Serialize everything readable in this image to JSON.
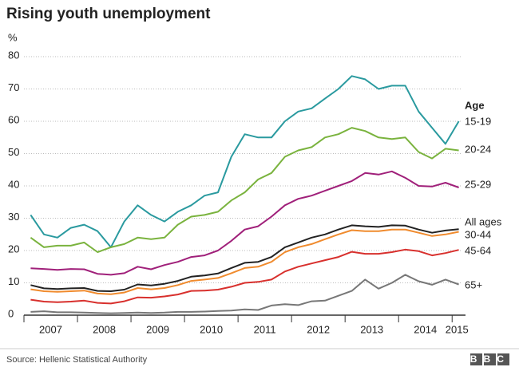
{
  "chart_data": {
    "type": "line",
    "title": "Rising youth unemployment",
    "y_label": "%",
    "legend_title": "Age",
    "source": "Source: Hellenic Statistical Authority",
    "logo": "BBC",
    "x": [
      2007.125,
      2007.375,
      2007.625,
      2007.875,
      2008.125,
      2008.375,
      2008.625,
      2008.875,
      2009.125,
      2009.375,
      2009.625,
      2009.875,
      2010.125,
      2010.375,
      2010.625,
      2010.875,
      2011.125,
      2011.375,
      2011.625,
      2011.875,
      2012.125,
      2012.375,
      2012.625,
      2012.875,
      2013.125,
      2013.375,
      2013.625,
      2013.875,
      2014.125,
      2014.375,
      2014.625,
      2014.875,
      2015.125
    ],
    "xlim": [
      2007,
      2015.25
    ],
    "xticks": [
      2007,
      2008,
      2009,
      2010,
      2011,
      2012,
      2013,
      2014,
      2015
    ],
    "ylim": [
      0,
      80
    ],
    "yticks": [
      0,
      10,
      20,
      30,
      40,
      50,
      60,
      70,
      80
    ],
    "grid": true,
    "series": [
      {
        "name": "15-19",
        "color": "#2a9a9f",
        "values": [
          31,
          25,
          24,
          27,
          28,
          26,
          21,
          29,
          34,
          31,
          29,
          32,
          34,
          37,
          38,
          49,
          56,
          55,
          55,
          60,
          63,
          64,
          67,
          70,
          74,
          73,
          70,
          71,
          71,
          63,
          58,
          53,
          60
        ]
      },
      {
        "name": "20-24",
        "color": "#7ab33e",
        "values": [
          24,
          21,
          21.5,
          21.5,
          22.5,
          19.5,
          21,
          22,
          24,
          23.5,
          24,
          28,
          30.5,
          31,
          32,
          35.5,
          38,
          42,
          44,
          49,
          51,
          52,
          55,
          56,
          58,
          57,
          55,
          54.5,
          55,
          50.5,
          48.5,
          51.5,
          51
        ]
      },
      {
        "name": "25-29",
        "color": "#a0207a",
        "values": [
          14.5,
          14.3,
          14,
          14.3,
          14.2,
          12.8,
          12.5,
          13,
          15,
          14.2,
          15.5,
          16.5,
          18,
          18.5,
          20,
          23,
          26.5,
          27.5,
          30.5,
          34,
          36,
          37,
          38.5,
          40,
          41.5,
          44,
          43.5,
          44.5,
          42.5,
          40,
          39.8,
          41,
          39.5
        ]
      },
      {
        "name": "All ages",
        "color": "#222222",
        "values": [
          9.3,
          8.3,
          8.1,
          8.3,
          8.4,
          7.5,
          7.4,
          7.9,
          9.5,
          9.2,
          9.7,
          10.6,
          11.9,
          12.3,
          12.9,
          14.6,
          16.2,
          16.5,
          18,
          21,
          22.5,
          24,
          25,
          26.5,
          27.8,
          27.5,
          27.3,
          27.8,
          27.7,
          26.5,
          25.5,
          26.2,
          26.6
        ]
      },
      {
        "name": "30-44",
        "color": "#f08b2e",
        "values": [
          8,
          7.4,
          7.2,
          7.4,
          7.6,
          6.7,
          6.5,
          7,
          8.4,
          8,
          8.4,
          9.3,
          10.6,
          11,
          11.5,
          13,
          14.6,
          15,
          16.5,
          19.5,
          21,
          22,
          23.5,
          25,
          26.3,
          26,
          26,
          26.5,
          26.5,
          25.5,
          24.5,
          25,
          25.8
        ]
      },
      {
        "name": "45-64",
        "color": "#d8302d",
        "values": [
          4.8,
          4.2,
          4,
          4.2,
          4.5,
          3.8,
          3.6,
          4.3,
          5.5,
          5.4,
          5.8,
          6.4,
          7.5,
          7.6,
          7.9,
          8.8,
          10,
          10.3,
          11,
          13.5,
          15,
          16,
          17,
          18,
          19.6,
          19,
          19,
          19.5,
          20.3,
          19.8,
          18.5,
          19.2,
          20.2
        ]
      },
      {
        "name": "65+",
        "color": "#777777",
        "values": [
          1,
          1.2,
          0.9,
          0.9,
          0.8,
          0.7,
          0.6,
          0.7,
          0.8,
          0.7,
          0.8,
          1,
          1,
          1.1,
          1.3,
          1.4,
          1.8,
          1.6,
          3,
          3.4,
          3.1,
          4.3,
          4.5,
          6,
          7.5,
          11,
          8.2,
          10,
          12.5,
          10.5,
          9.4,
          11,
          9.5
        ]
      }
    ]
  }
}
